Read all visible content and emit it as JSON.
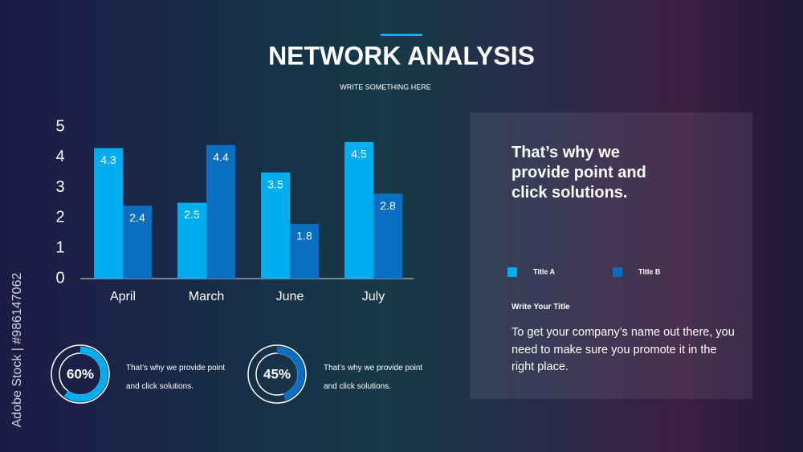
{
  "header": {
    "title": "NETWORK ANALYSIS",
    "subtitle": "WRITE SOMETHING HERE"
  },
  "chart_data": {
    "type": "bar",
    "categories": [
      "April",
      "March",
      "June",
      "July"
    ],
    "series": [
      {
        "name": "Title A",
        "color": "#00aeef",
        "values": [
          4.3,
          2.5,
          3.5,
          4.5
        ]
      },
      {
        "name": "Title B",
        "color": "#0b6fc1",
        "values": [
          2.4,
          4.4,
          1.8,
          2.8
        ]
      }
    ],
    "ylim": [
      0,
      5
    ],
    "yticks": [
      0,
      1,
      2,
      3,
      4,
      5
    ],
    "grid": false
  },
  "donuts": [
    {
      "value": 60,
      "value_label": "60%",
      "color": "#00aeef",
      "text": "That’s why we provide point and click solutions."
    },
    {
      "value": 45,
      "value_label": "45%",
      "color": "#0b6fc1",
      "text": "That’s why we provide point and click solutions."
    }
  ],
  "panel": {
    "heading": "That’s why we provide point and click solutions.",
    "subtitle": "Write Your Title",
    "body": "To get your company’s name out there, you need to make sure you promote it in the right place."
  },
  "watermark": "Adobe Stock | #986147062"
}
